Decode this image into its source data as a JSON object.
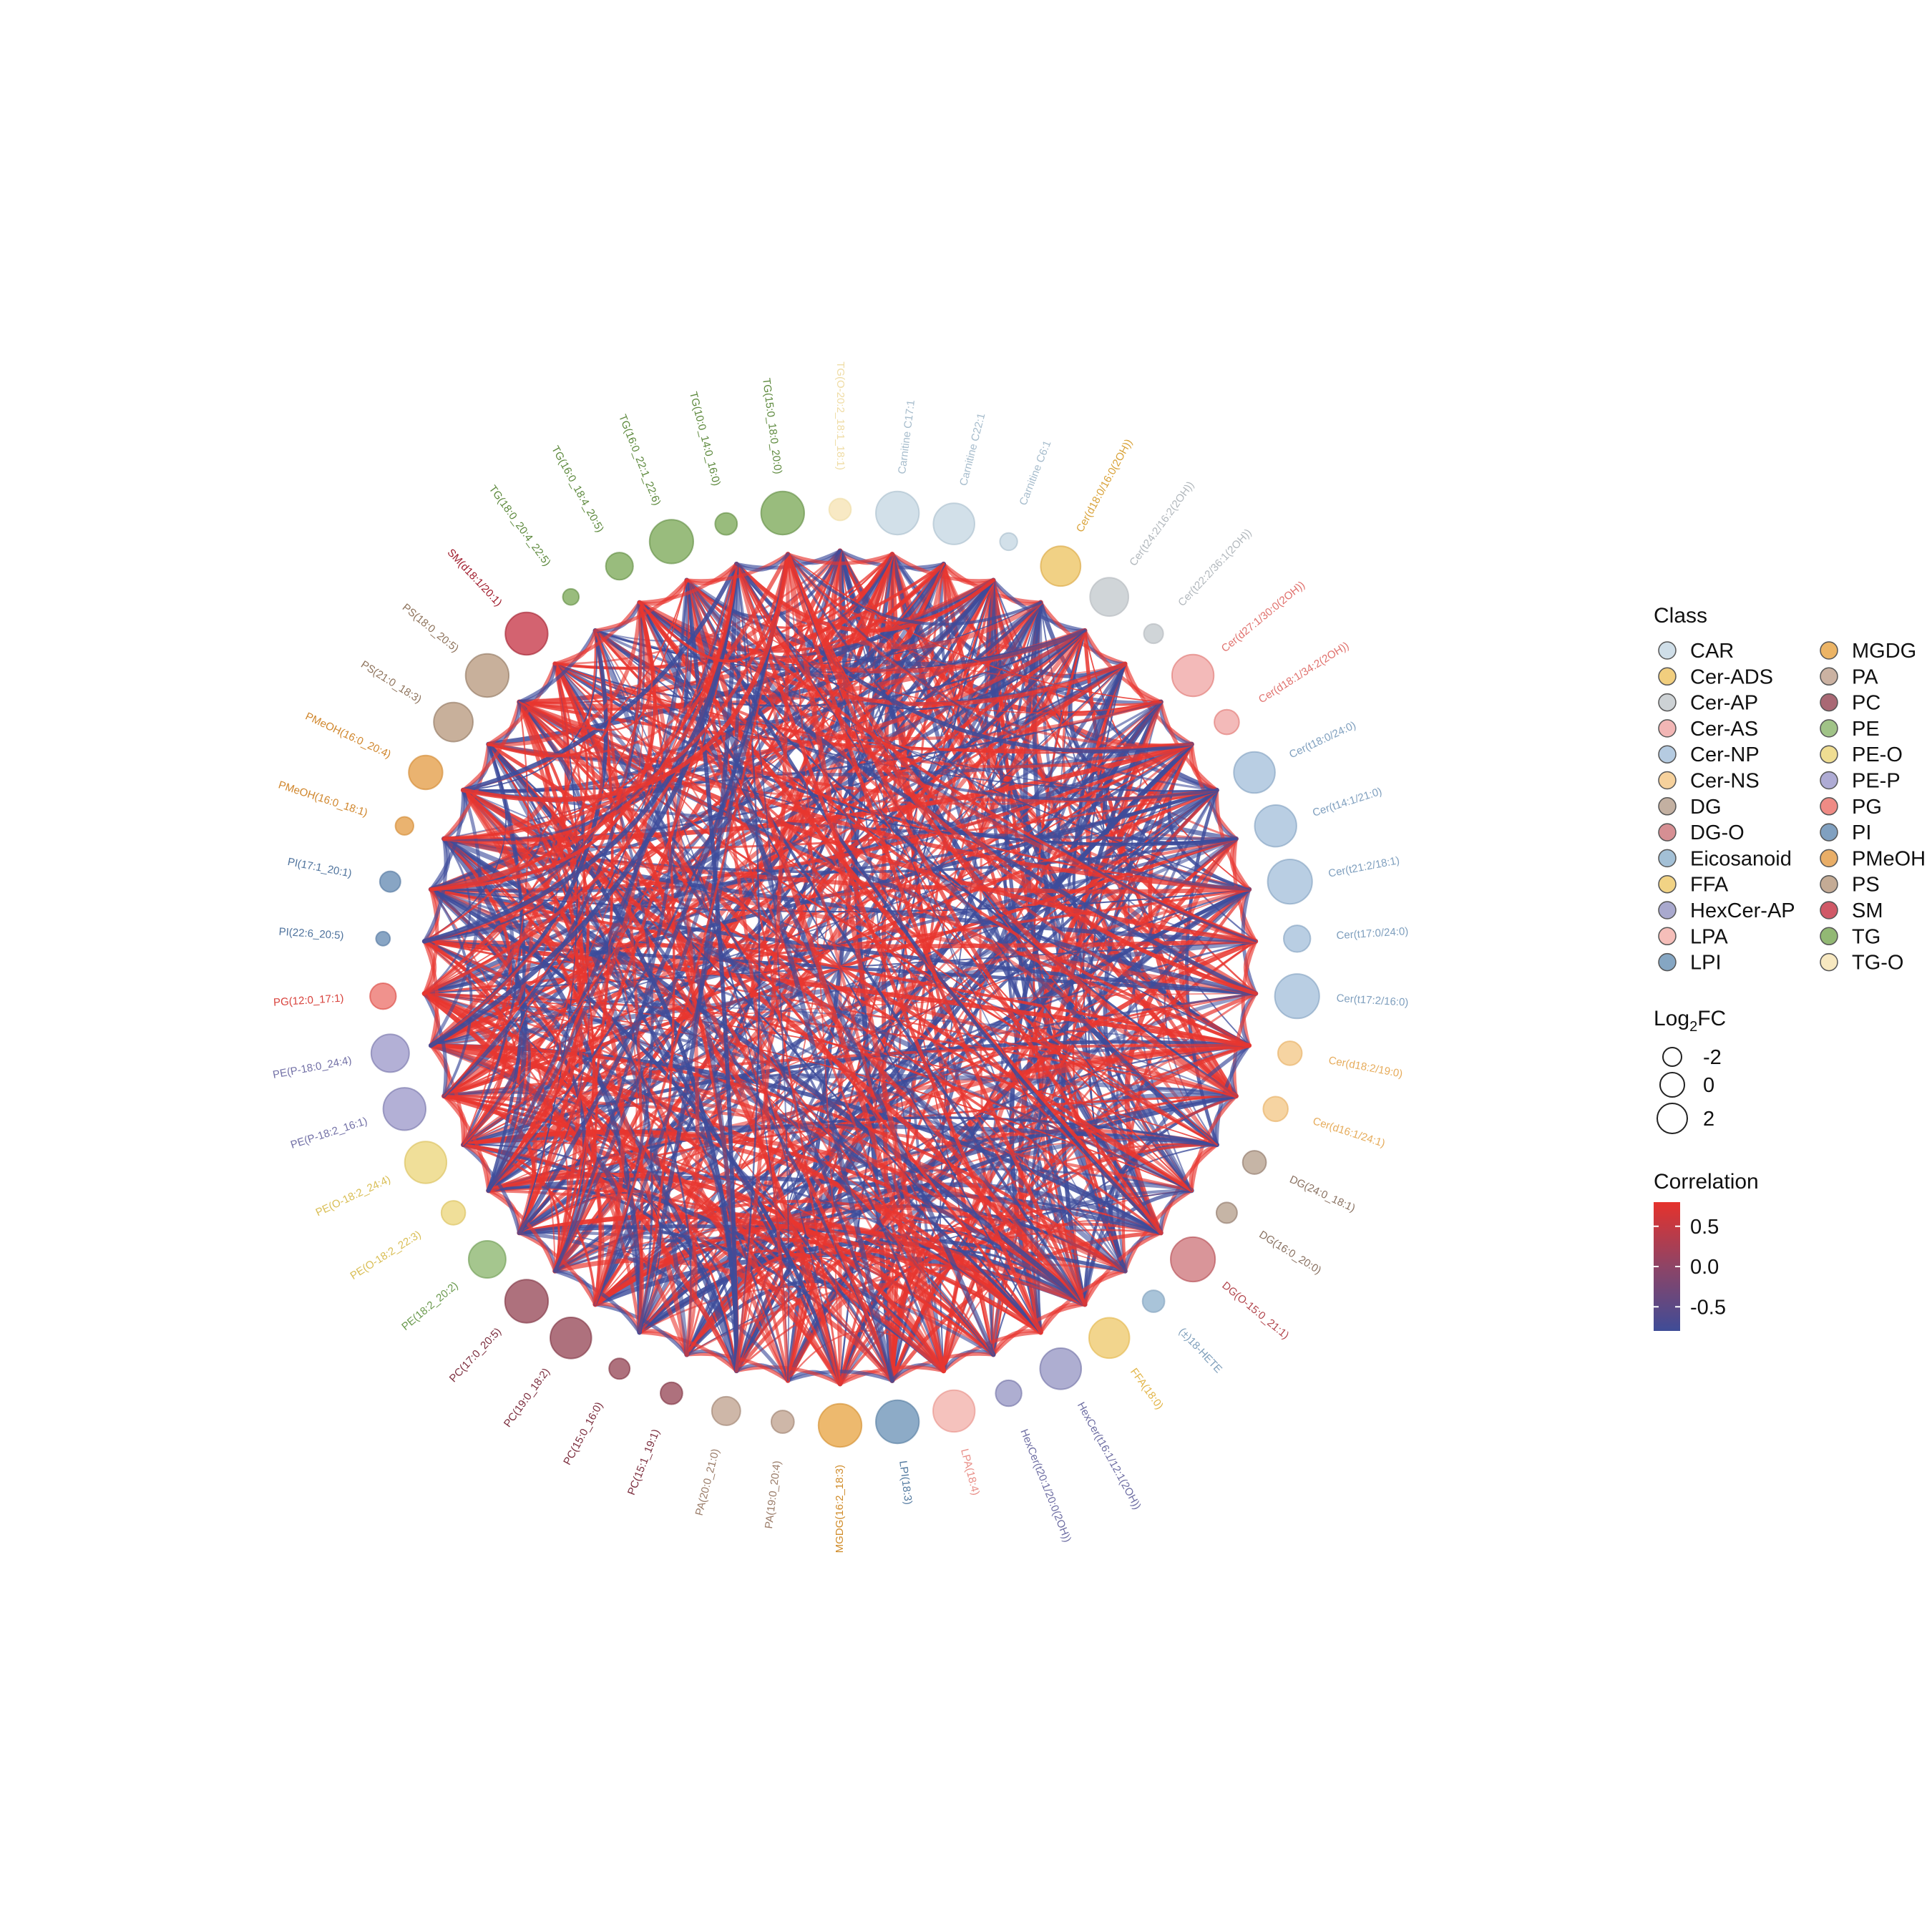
{
  "chart_data": {
    "type": "network",
    "layout": "circular",
    "nodes": [
      {
        "label": "TG(O-20:2_18:1_18:1)",
        "class": "TG-O",
        "log2fc": -1.6
      },
      {
        "label": "Carnitine C17:1",
        "class": "CAR",
        "log2fc": 1.6
      },
      {
        "label": "Carnitine C22:1",
        "class": "CAR",
        "log2fc": 1.3
      },
      {
        "label": "Carnitine C6:1",
        "class": "CAR",
        "log2fc": -2.3
      },
      {
        "label": "Cer(d18:0/16:0(2OH))",
        "class": "Cer-ADS",
        "log2fc": 1.1
      },
      {
        "label": "Cer(t24:2/16:2(2OH))",
        "class": "Cer-AP",
        "log2fc": 0.9
      },
      {
        "label": "Cer(t22:2/36:1(2OH))",
        "class": "Cer-AP",
        "log2fc": -2.0
      },
      {
        "label": "Cer(d27:1/30:0(2OH))",
        "class": "Cer-AS",
        "log2fc": 1.4
      },
      {
        "label": "Cer(d18:1/34:2(2OH))",
        "class": "Cer-AS",
        "log2fc": -1.2
      },
      {
        "label": "Cer(t18:0/24:0)",
        "class": "Cer-NP",
        "log2fc": 1.3
      },
      {
        "label": "Cer(t14:1/21:0)",
        "class": "Cer-NP",
        "log2fc": 1.4
      },
      {
        "label": "Cer(t21:2/18:1)",
        "class": "Cer-NP",
        "log2fc": 1.8
      },
      {
        "label": "Cer(t17:0/24:0)",
        "class": "Cer-NP",
        "log2fc": -0.9
      },
      {
        "label": "Cer(t17:2/16:0)",
        "class": "Cer-NP",
        "log2fc": 1.8
      },
      {
        "label": "Cer(d18:2/19:0)",
        "class": "Cer-NS",
        "log2fc": -1.3
      },
      {
        "label": "Cer(d16:1/24:1)",
        "class": "Cer-NS",
        "log2fc": -1.2
      },
      {
        "label": "DG(24:0_18:1)",
        "class": "DG",
        "log2fc": -1.4
      },
      {
        "label": "DG(16:0_20:0)",
        "class": "DG",
        "log2fc": -1.8
      },
      {
        "label": "DG(O-15:0_21:1)",
        "class": "DG-O",
        "log2fc": 1.8
      },
      {
        "label": "(±)18-HETE",
        "class": "Eicosanoid",
        "log2fc": -1.6
      },
      {
        "label": "FFA(18:0)",
        "class": "FFA",
        "log2fc": 1.2
      },
      {
        "label": "HexCer(t16:1/12:1(2OH))",
        "class": "HexCer-AP",
        "log2fc": 1.3
      },
      {
        "label": "HexCer(t20:1/20:0(2OH))",
        "class": "HexCer-AP",
        "log2fc": -1.0
      },
      {
        "label": "LPA(18:4)",
        "class": "LPA",
        "log2fc": 1.4
      },
      {
        "label": "LPI(18:3)",
        "class": "LPI",
        "log2fc": 1.6
      },
      {
        "label": "MGDG(16:2_18:3)",
        "class": "MGDG",
        "log2fc": 1.6
      },
      {
        "label": "PA(19:0_20:4)",
        "class": "PA",
        "log2fc": -1.5
      },
      {
        "label": "PA(20:0_21:0)",
        "class": "PA",
        "log2fc": -0.6
      },
      {
        "label": "PC(15:1_19:1)",
        "class": "PC",
        "log2fc": -1.6
      },
      {
        "label": "PC(15:0_16:0)",
        "class": "PC",
        "log2fc": -1.8
      },
      {
        "label": "PC(19:0_18:2)",
        "class": "PC",
        "log2fc": 1.3
      },
      {
        "label": "PC(17:0_20:5)",
        "class": "PC",
        "log2fc": 1.6
      },
      {
        "label": "PE(18:2_20:2)",
        "class": "PE",
        "log2fc": 0.7
      },
      {
        "label": "PE(O-18:2_22:3)",
        "class": "PE-O",
        "log2fc": -1.3
      },
      {
        "label": "PE(O-18:2_24:4)",
        "class": "PE-O",
        "log2fc": 1.4
      },
      {
        "label": "PE(P-18:2_16:1)",
        "class": "PE-P",
        "log2fc": 1.5
      },
      {
        "label": "PE(P-18:0_24:4)",
        "class": "PE-P",
        "log2fc": 0.8
      },
      {
        "label": "PG(12:0_17:1)",
        "class": "PG",
        "log2fc": -1.0
      },
      {
        "label": "PI(22:6_20:5)",
        "class": "PI",
        "log2fc": -2.8
      },
      {
        "label": "PI(17:1_20:1)",
        "class": "PI",
        "log2fc": -1.8
      },
      {
        "label": "PMeOH(16:0_18:1)",
        "class": "PMeOH",
        "log2fc": -2.2
      },
      {
        "label": "PMeOH(16:0_20:4)",
        "class": "PMeOH",
        "log2fc": 0.2
      },
      {
        "label": "PS(21:0_18:3)",
        "class": "PS",
        "log2fc": 1.0
      },
      {
        "label": "PS(18:0_20:5)",
        "class": "PS",
        "log2fc": 1.6
      },
      {
        "label": "SM(d18:1/20:1)",
        "class": "SM",
        "log2fc": 1.5
      },
      {
        "label": "TG(18:0_20:4_22:5)",
        "class": "TG",
        "log2fc": -2.5
      },
      {
        "label": "TG(16:0_18:4_20:5)",
        "class": "TG",
        "log2fc": -0.8
      },
      {
        "label": "TG(16:0_22:1_22:6)",
        "class": "TG",
        "log2fc": 1.7
      },
      {
        "label": "TG(10:0_14:0_16:0)",
        "class": "TG",
        "log2fc": -1.6
      },
      {
        "label": "TG(15:0_18:0_20:0)",
        "class": "TG",
        "log2fc": 1.6
      }
    ],
    "class_colors": {
      "CAR": "#c7d8e4",
      "Cer-ADS": "#eec567",
      "Cer-AP": "#c4cace",
      "Cer-AS": "#f0a9a8",
      "Cer-NP": "#a8c2dc",
      "Cer-NS": "#f4c98b",
      "DG": "#b8a290",
      "DG-O": "#cf7b80",
      "Eicosanoid": "#93b5cf",
      "FFA": "#efcb70",
      "HexCer-AP": "#9a9ac6",
      "LPA": "#f3b3ad",
      "LPI": "#7096b9",
      "MGDG": "#e9a74a",
      "PA": "#c2a592",
      "PC": "#9a4e5c",
      "PE": "#8fb872",
      "PE-O": "#ecd77f",
      "PE-P": "#a09ccc",
      "PG": "#ec7770",
      "PI": "#6a8fb5",
      "PMeOH": "#e5a04c",
      "PS": "#ba9c82",
      "SM": "#c83c4c",
      "TG": "#7fab5c",
      "TG-O": "#f6e4b5"
    },
    "class_text_colors": {
      "TG-O": "#efdca4",
      "CAR": "#a6bccc",
      "Cer-ADS": "#d9a33a",
      "Cer-AP": "#b2b8bd",
      "Cer-AS": "#e0716d",
      "Cer-NP": "#7f9fbe",
      "Cer-NS": "#e6ac5c",
      "DG": "#8a7262",
      "DG-O": "#b2464d",
      "Eicosanoid": "#7f9fbb",
      "FFA": "#e2b548",
      "HexCer-AP": "#6e6ea3",
      "LPA": "#e88d86",
      "LPI": "#52799f",
      "MGDG": "#d08b28",
      "PA": "#9b7d6a",
      "PC": "#7c2e3e",
      "PE": "#6b9a4e",
      "PE-O": "#d9be55",
      "PE-P": "#7270a6",
      "PG": "#d8423c",
      "PI": "#4f739d",
      "PMeOH": "#d0862c",
      "PS": "#8e735c",
      "SM": "#a01c2c",
      "TG": "#5e8a3e"
    },
    "legend": {
      "class_title": "Class",
      "classes_col1": [
        "CAR",
        "Cer-ADS",
        "Cer-AP",
        "Cer-AS",
        "Cer-NP",
        "Cer-NS",
        "DG",
        "DG-O",
        "Eicosanoid",
        "FFA",
        "HexCer-AP",
        "LPA",
        "LPI"
      ],
      "classes_col2": [
        "MGDG",
        "PA",
        "PC",
        "PE",
        "PE-O",
        "PE-P",
        "PG",
        "PI",
        "PMeOH",
        "PS",
        "SM",
        "TG",
        "TG-O"
      ],
      "size_title_base": "Log",
      "size_title_sub": "2",
      "size_title_rest": "FC",
      "size_values": [
        "-2",
        "0",
        "2"
      ],
      "color_title": "Correlation",
      "color_ticks": [
        "0.5",
        "0.0",
        "-0.5"
      ],
      "color_tick_values": [
        0.5,
        0.0,
        -0.5
      ],
      "color_range": [
        -0.8,
        0.8
      ],
      "color_low": "#3f4c97",
      "color_high": "#e5322c"
    },
    "edge_colors": {
      "positive": "#e8362f",
      "negative": "#3d4c9b"
    }
  }
}
